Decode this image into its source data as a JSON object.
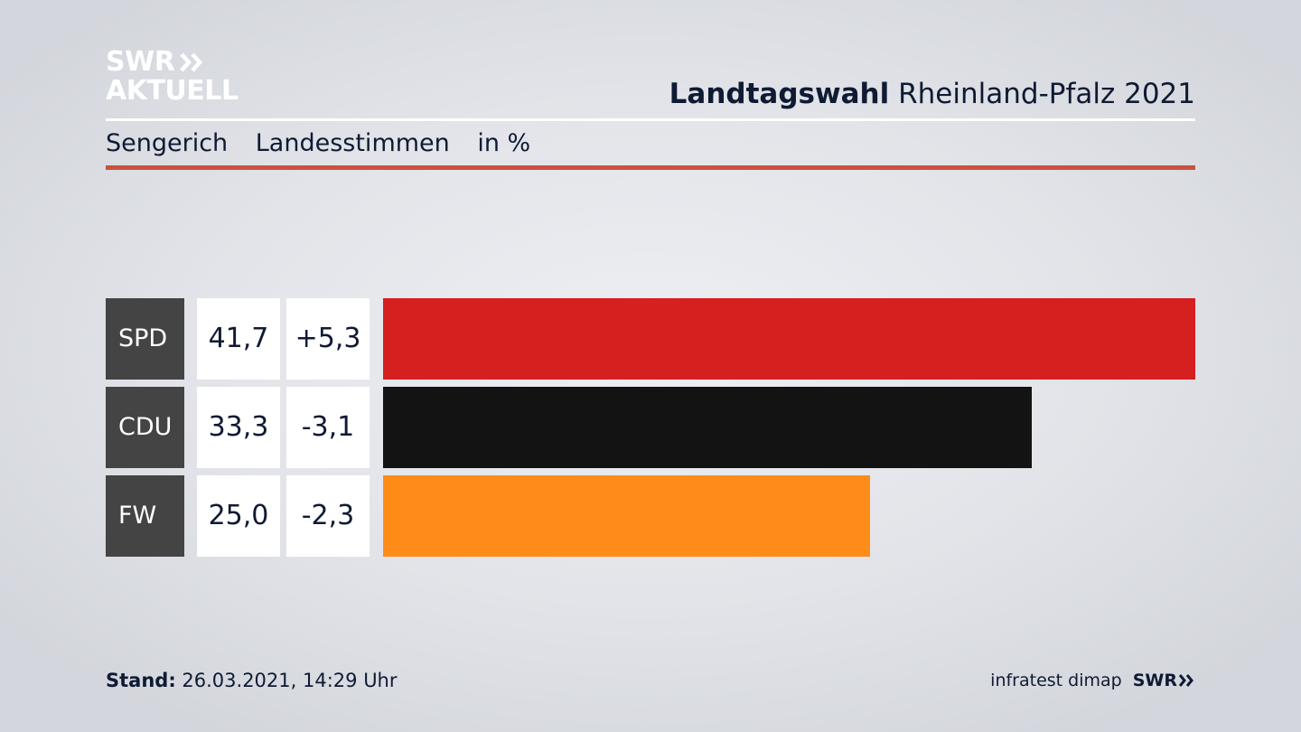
{
  "logo": {
    "line1": "SWR",
    "line2": "AKTUELL",
    "chevron_icon": "double-chevron-right-icon"
  },
  "header": {
    "title_bold": "Landtagswahl",
    "title_rest": "Rheinland-Pfalz 2021",
    "subheader": [
      "Sengerich",
      "Landesstimmen",
      "in %"
    ]
  },
  "colors": {
    "accent_rule": "#c9523f",
    "party_label_bg": "#444444",
    "SPD": "#d61f1f",
    "CDU": "#131313",
    "FW": "#ff8c18"
  },
  "chart_data": {
    "type": "bar",
    "orientation": "horizontal",
    "categories": [
      "SPD",
      "CDU",
      "FW"
    ],
    "values": [
      41.7,
      33.3,
      25.0
    ],
    "value_labels": [
      "41,7",
      "33,3",
      "25,0"
    ],
    "changes": [
      5.3,
      -3.1,
      -2.3
    ],
    "change_labels": [
      "+5,3",
      "-3,1",
      "-2,3"
    ],
    "colors": [
      "#d61f1f",
      "#131313",
      "#ff8c18"
    ],
    "xlim": [
      0,
      41.7
    ],
    "unit": "in %"
  },
  "footer": {
    "stand_label": "Stand:",
    "stand_value": "26.03.2021, 14:29 Uhr",
    "source": "infratest dimap",
    "brand": "SWR"
  }
}
